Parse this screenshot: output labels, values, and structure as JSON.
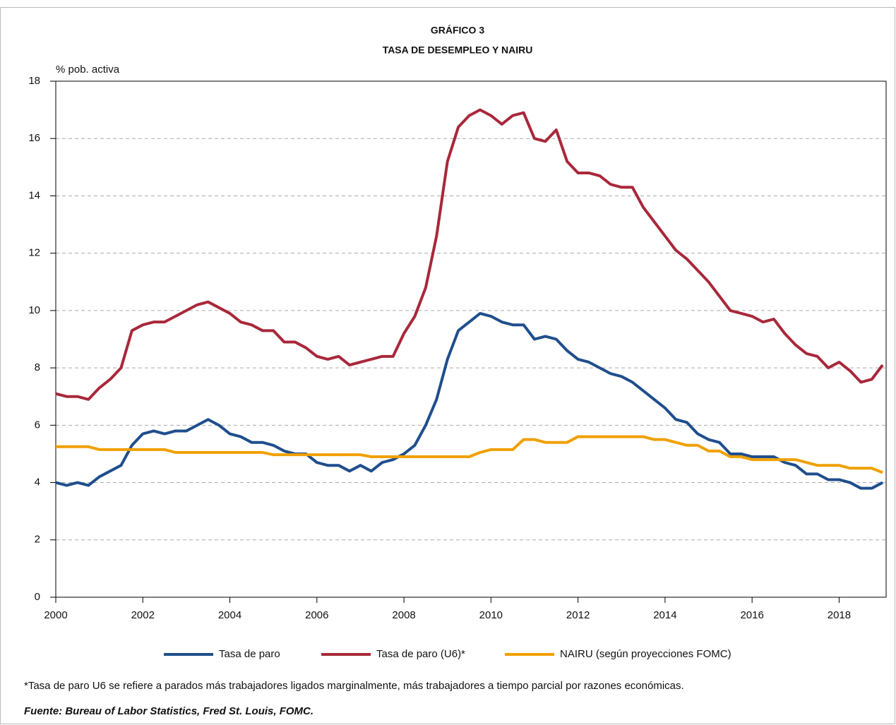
{
  "chart_data": {
    "type": "line",
    "title": "GRÁFICO 3",
    "subtitle": "TASA DE DESEMPLEO Y NAIRU",
    "y_label": "% pob. activa",
    "note": "*Tasa de paro U6 se refiere a parados más trabajadores ligados marginalmente, más trabajadores a tiempo parcial por razones económicas.",
    "source": "Fuente: Bureau of Labor Statistics, Fred St. Louis, FOMC.",
    "x": [
      2000,
      2000.25,
      2000.5,
      2000.75,
      2001,
      2001.25,
      2001.5,
      2001.75,
      2002,
      2002.25,
      2002.5,
      2002.75,
      2003,
      2003.25,
      2003.5,
      2003.75,
      2004,
      2004.25,
      2004.5,
      2004.75,
      2005,
      2005.25,
      2005.5,
      2005.75,
      2006,
      2006.25,
      2006.5,
      2006.75,
      2007,
      2007.25,
      2007.5,
      2007.75,
      2008,
      2008.25,
      2008.5,
      2008.75,
      2009,
      2009.25,
      2009.5,
      2009.75,
      2010,
      2010.25,
      2010.5,
      2010.75,
      2011,
      2011.25,
      2011.5,
      2011.75,
      2012,
      2012.25,
      2012.5,
      2012.75,
      2013,
      2013.25,
      2013.5,
      2013.75,
      2014,
      2014.25,
      2014.5,
      2014.75,
      2015,
      2015.25,
      2015.5,
      2015.75,
      2016,
      2016.25,
      2016.5,
      2016.75,
      2017,
      2017.25,
      2017.5,
      2017.75,
      2018,
      2018.25,
      2018.5,
      2018.75,
      2019
    ],
    "series": [
      {
        "name": "Tasa de paro",
        "color": "#1f4e8c",
        "values": [
          4.0,
          3.9,
          4.0,
          3.9,
          4.2,
          4.4,
          4.6,
          5.3,
          5.7,
          5.8,
          5.7,
          5.8,
          5.8,
          6.0,
          6.2,
          6.0,
          5.7,
          5.6,
          5.4,
          5.4,
          5.3,
          5.1,
          5.0,
          5.0,
          4.7,
          4.6,
          4.6,
          4.4,
          4.6,
          4.4,
          4.7,
          4.8,
          5.0,
          5.3,
          6.0,
          6.9,
          8.3,
          9.3,
          9.6,
          9.9,
          9.8,
          9.6,
          9.5,
          9.5,
          9.0,
          9.1,
          9.0,
          8.6,
          8.3,
          8.2,
          8.0,
          7.8,
          7.7,
          7.5,
          7.2,
          6.9,
          6.6,
          6.2,
          6.1,
          5.7,
          5.5,
          5.4,
          5.0,
          5.0,
          4.9,
          4.9,
          4.9,
          4.7,
          4.6,
          4.3,
          4.3,
          4.1,
          4.1,
          4.0,
          3.8,
          3.8,
          4.0
        ]
      },
      {
        "name": "Tasa de paro (U6)*",
        "color": "#a8283a",
        "values": [
          7.1,
          7.0,
          7.0,
          6.9,
          7.3,
          7.6,
          8.0,
          9.3,
          9.5,
          9.6,
          9.6,
          9.8,
          10.0,
          10.2,
          10.3,
          10.1,
          9.9,
          9.6,
          9.5,
          9.3,
          9.3,
          8.9,
          8.9,
          8.7,
          8.4,
          8.3,
          8.4,
          8.1,
          8.2,
          8.3,
          8.4,
          8.4,
          9.2,
          9.8,
          10.8,
          12.6,
          15.2,
          16.4,
          16.8,
          17.0,
          16.8,
          16.5,
          16.8,
          16.9,
          16.0,
          15.9,
          16.3,
          15.2,
          14.8,
          14.8,
          14.7,
          14.4,
          14.3,
          14.3,
          13.6,
          13.1,
          12.6,
          12.1,
          11.8,
          11.4,
          11.0,
          10.5,
          10.0,
          9.9,
          9.8,
          9.6,
          9.7,
          9.2,
          8.8,
          8.5,
          8.4,
          8.0,
          8.2,
          7.9,
          7.5,
          7.6,
          8.1
        ]
      },
      {
        "name": "NAIRU (según proyecciones FOMC)",
        "color": "#f0a000",
        "values": [
          5.25,
          5.25,
          5.25,
          5.25,
          5.15,
          5.15,
          5.15,
          5.15,
          5.15,
          5.15,
          5.15,
          5.05,
          5.05,
          5.05,
          5.05,
          5.05,
          5.05,
          5.05,
          5.05,
          5.05,
          4.97,
          4.97,
          4.97,
          4.97,
          4.97,
          4.97,
          4.97,
          4.97,
          4.97,
          4.9,
          4.9,
          4.9,
          4.9,
          4.9,
          4.9,
          4.9,
          4.9,
          4.9,
          4.9,
          5.05,
          5.15,
          5.15,
          5.15,
          5.5,
          5.5,
          5.4,
          5.4,
          5.4,
          5.6,
          5.6,
          5.6,
          5.6,
          5.6,
          5.6,
          5.6,
          5.5,
          5.5,
          5.4,
          5.3,
          5.3,
          5.1,
          5.1,
          4.9,
          4.9,
          4.8,
          4.8,
          4.8,
          4.8,
          4.8,
          4.7,
          4.6,
          4.6,
          4.6,
          4.5,
          4.5,
          4.5,
          4.35
        ]
      }
    ],
    "xlim": [
      2000,
      2019.08
    ],
    "xticks": [
      2000,
      2002,
      2004,
      2006,
      2008,
      2010,
      2012,
      2014,
      2016,
      2018
    ],
    "ylim": [
      0,
      18
    ],
    "yticks": [
      0,
      2,
      4,
      6,
      8,
      10,
      12,
      14,
      16,
      18
    ],
    "grid": true
  }
}
